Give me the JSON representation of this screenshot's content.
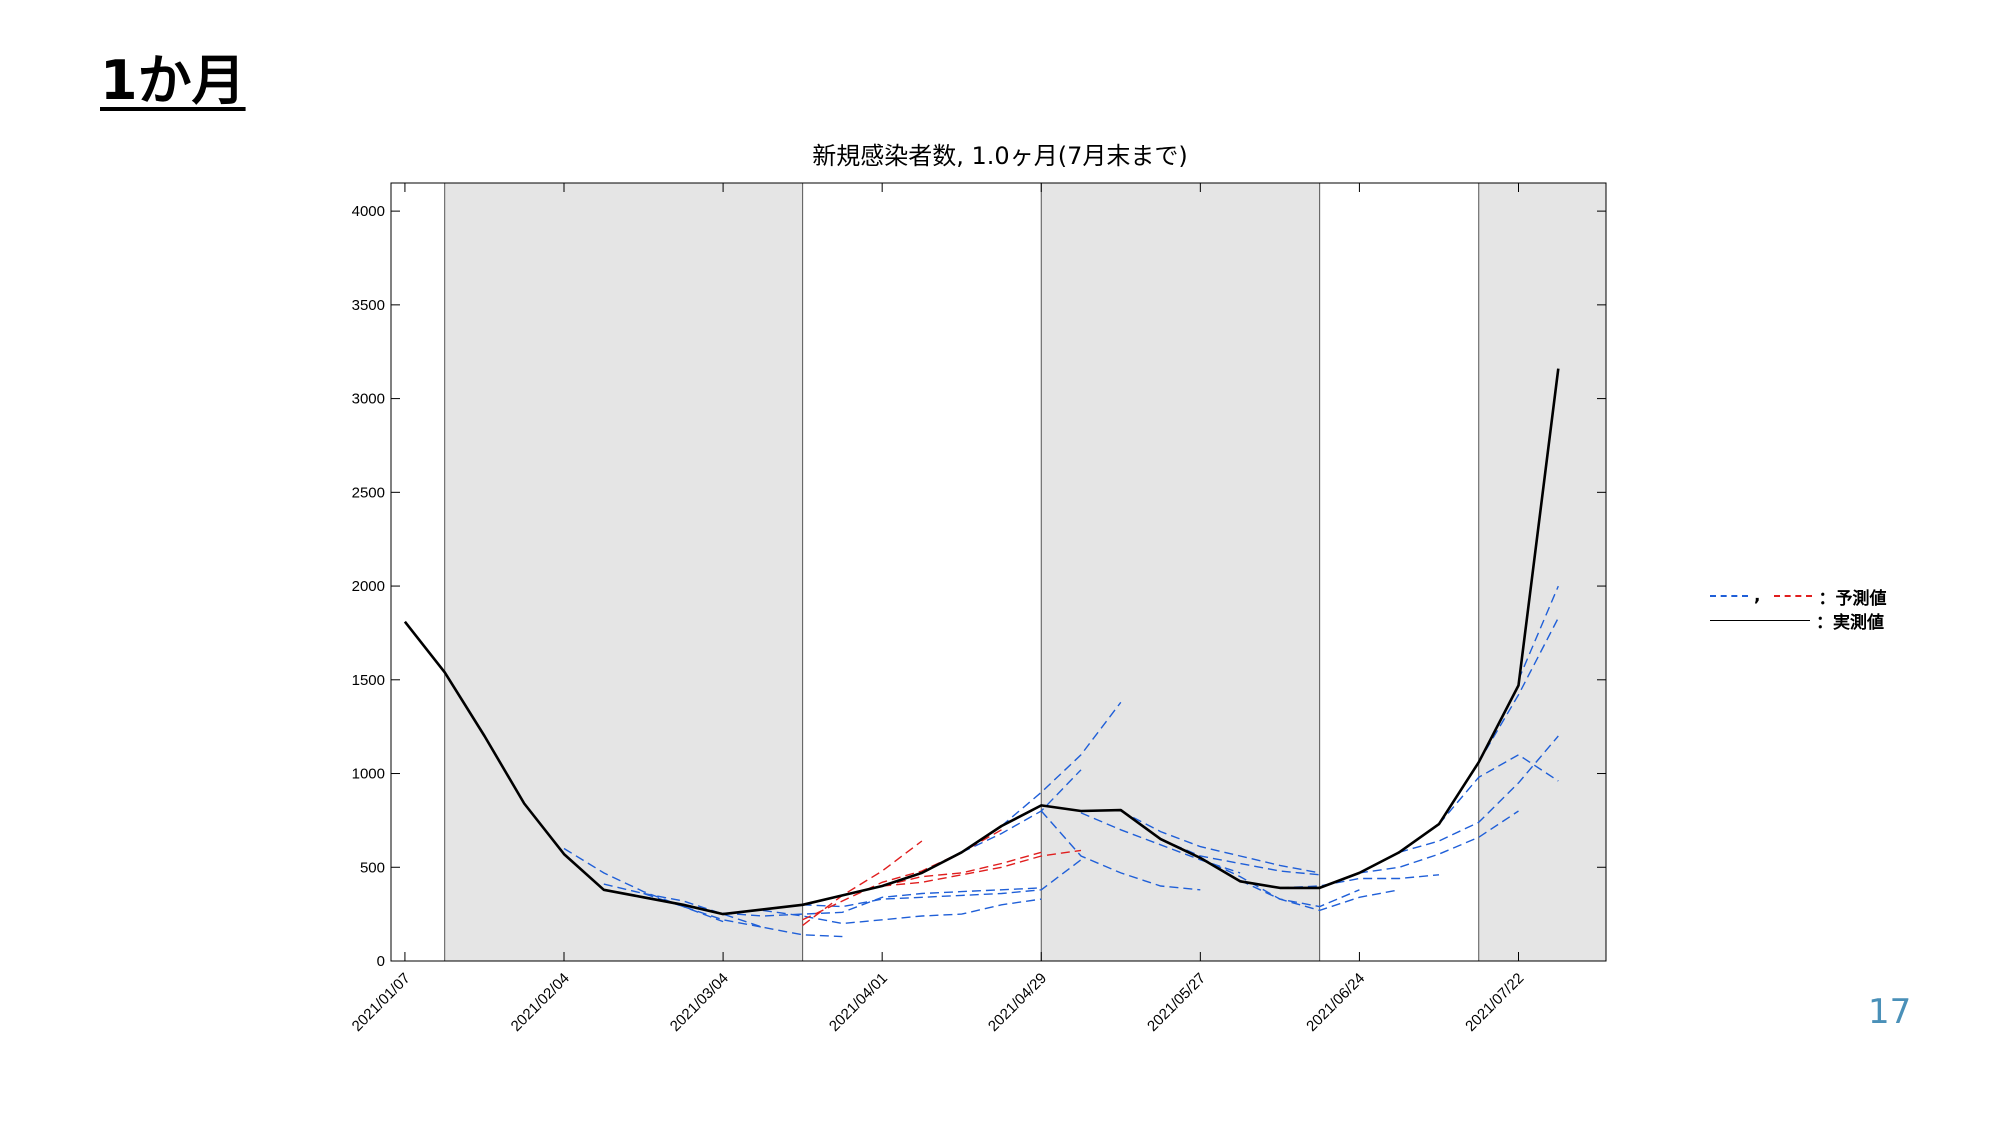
{
  "slide": {
    "title": "1か月",
    "page_number": "17"
  },
  "legend": {
    "predicted_label": "：予測値",
    "actual_label": "：実測値",
    "comma": ",",
    "colors": {
      "predicted_blue": "#1f5fd8",
      "predicted_red": "#e01e1e",
      "actual": "#000000"
    }
  },
  "chart_data": {
    "type": "line",
    "title": "新規感染者数, 1.0ヶ月(7月末まで)",
    "xlabel": "",
    "ylabel": "",
    "x_tick_labels": [
      "2021/01/07",
      "2021/02/04",
      "2021/03/04",
      "2021/04/01",
      "2021/04/29",
      "2021/05/27",
      "2021/06/24",
      "2021/07/22"
    ],
    "ylim": [
      0,
      4150
    ],
    "y_ticks": [
      0,
      500,
      1000,
      1500,
      2000,
      2500,
      3000,
      3500,
      4000
    ],
    "x_unit": "weeks since 2021/01/07",
    "xlim": [
      -0.35,
      30.2
    ],
    "shaded_periods": [
      [
        1.0,
        10.0
      ],
      [
        16.0,
        23.0
      ],
      [
        27.0,
        30.2
      ]
    ],
    "boundary_lines": [
      1.0,
      10.0,
      16.0,
      23.0,
      27.0
    ],
    "series": [
      {
        "kind": "actual",
        "x": [
          0,
          1,
          2,
          3,
          4,
          5,
          6,
          7,
          8,
          9,
          10,
          11,
          12,
          13,
          14,
          15,
          16,
          17,
          18,
          19,
          20,
          21,
          22,
          23,
          24,
          25,
          26,
          27,
          28,
          29
        ],
        "values": [
          1810,
          1540,
          1200,
          840,
          570,
          380,
          340,
          300,
          250,
          275,
          300,
          350,
          400,
          470,
          580,
          720,
          830,
          800,
          805,
          650,
          550,
          425,
          390,
          390,
          470,
          580,
          730,
          1060,
          1470,
          3160
        ]
      }
    ],
    "forecasts": [
      {
        "color": "blue",
        "x": [
          4,
          5,
          6,
          7,
          8
        ],
        "values": [
          600,
          470,
          370,
          290,
          210
        ]
      },
      {
        "color": "blue",
        "x": [
          5,
          6,
          7,
          8,
          9
        ],
        "values": [
          410,
          360,
          290,
          220,
          180
        ]
      },
      {
        "color": "blue",
        "x": [
          6,
          7,
          8,
          9,
          10,
          11
        ],
        "values": [
          360,
          320,
          250,
          180,
          140,
          130
        ]
      },
      {
        "color": "blue",
        "x": [
          8,
          9,
          10,
          11,
          12,
          13,
          14,
          15,
          16
        ],
        "values": [
          255,
          240,
          250,
          260,
          340,
          360,
          370,
          380,
          390
        ]
      },
      {
        "color": "blue",
        "x": [
          9,
          10,
          11,
          12,
          13,
          14,
          15,
          16
        ],
        "values": [
          270,
          240,
          200,
          220,
          240,
          250,
          300,
          330
        ]
      },
      {
        "color": "blue",
        "x": [
          10,
          11,
          12,
          13,
          14,
          15,
          16,
          17
        ],
        "values": [
          300,
          290,
          330,
          340,
          350,
          360,
          380,
          540
        ]
      },
      {
        "color": "blue",
        "x": [
          14,
          15,
          16,
          17
        ],
        "values": [
          580,
          680,
          800,
          1020
        ]
      },
      {
        "color": "blue",
        "x": [
          15,
          16,
          17,
          18
        ],
        "values": [
          720,
          900,
          1100,
          1380
        ]
      },
      {
        "color": "blue",
        "x": [
          16,
          17,
          18,
          19,
          20
        ],
        "values": [
          800,
          560,
          470,
          400,
          380
        ]
      },
      {
        "color": "blue",
        "x": [
          17,
          18,
          19,
          20,
          21
        ],
        "values": [
          790,
          700,
          620,
          540,
          470
        ]
      },
      {
        "color": "blue",
        "x": [
          18,
          19,
          20,
          21,
          22,
          23
        ],
        "values": [
          800,
          690,
          610,
          560,
          510,
          470
        ]
      },
      {
        "color": "blue",
        "x": [
          19,
          20,
          21,
          22,
          23
        ],
        "values": [
          650,
          560,
          520,
          480,
          460
        ]
      },
      {
        "color": "blue",
        "x": [
          20,
          21,
          22,
          23,
          24
        ],
        "values": [
          550,
          450,
          330,
          290,
          380
        ]
      },
      {
        "color": "blue",
        "x": [
          21,
          22,
          23,
          24,
          25
        ],
        "values": [
          430,
          330,
          270,
          340,
          380
        ]
      },
      {
        "color": "blue",
        "x": [
          22,
          23,
          24,
          25,
          26
        ],
        "values": [
          390,
          400,
          440,
          440,
          460
        ]
      },
      {
        "color": "blue",
        "x": [
          23,
          24,
          25,
          26,
          27,
          28
        ],
        "values": [
          390,
          470,
          500,
          570,
          660,
          800
        ]
      },
      {
        "color": "blue",
        "x": [
          25,
          26,
          27,
          28,
          29
        ],
        "values": [
          580,
          640,
          740,
          950,
          1200
        ]
      },
      {
        "color": "blue",
        "x": [
          26,
          27,
          28,
          29
        ],
        "values": [
          730,
          980,
          1100,
          960
        ]
      },
      {
        "color": "blue",
        "x": [
          27,
          28,
          29
        ],
        "values": [
          1060,
          1420,
          1830
        ]
      },
      {
        "color": "blue",
        "x": [
          28,
          29
        ],
        "values": [
          1500,
          2000
        ]
      },
      {
        "color": "red",
        "x": [
          10,
          11,
          12,
          13
        ],
        "values": [
          190,
          350,
          480,
          640
        ]
      },
      {
        "color": "red",
        "x": [
          10,
          11,
          12,
          13,
          14,
          15
        ],
        "values": [
          220,
          320,
          420,
          480,
          580,
          700
        ]
      },
      {
        "color": "red",
        "x": [
          11,
          12,
          13,
          14,
          15,
          16
        ],
        "values": [
          350,
          400,
          450,
          470,
          520,
          580
        ]
      },
      {
        "color": "red",
        "x": [
          12,
          13,
          14,
          15,
          16,
          17
        ],
        "values": [
          400,
          420,
          460,
          500,
          560,
          590
        ]
      }
    ]
  }
}
